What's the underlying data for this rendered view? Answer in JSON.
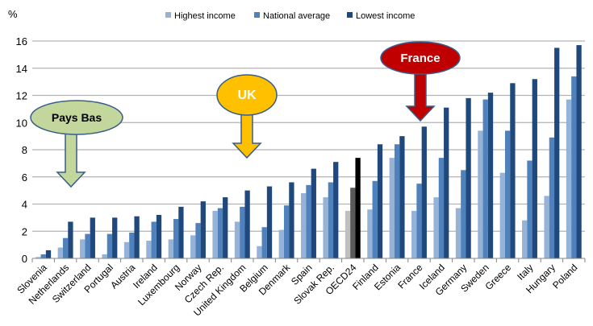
{
  "chart_data": {
    "type": "bar",
    "ylabel": "%",
    "ylim": [
      0,
      16
    ],
    "yticks": [
      0,
      2,
      4,
      6,
      8,
      10,
      12,
      14,
      16
    ],
    "grid": true,
    "legend_position": "top",
    "categories": [
      "Slovenia",
      "Netherlands",
      "Switzerland",
      "Portugal",
      "Austria",
      "Ireland",
      "Luxembourg",
      "Norway",
      "Czech Rep.",
      "United Kingdom",
      "Belgium",
      "Denmark",
      "Spain",
      "Slovak Rep.",
      "OECD24",
      "Finland",
      "Estonia",
      "France",
      "Iceland",
      "Germany",
      "Sweden",
      "Greece",
      "Italy",
      "Hungary",
      "Poland"
    ],
    "series": [
      {
        "name": "Highest income",
        "color": "#95b3d7",
        "values": [
          0.1,
          0.8,
          1.4,
          0.3,
          1.2,
          1.3,
          1.4,
          1.7,
          3.5,
          2.7,
          0.9,
          2.1,
          4.8,
          4.5,
          3.5,
          3.6,
          7.4,
          3.5,
          4.5,
          3.7,
          9.4,
          6.3,
          2.8,
          4.6,
          11.7
        ]
      },
      {
        "name": "National average",
        "color": "#4f81bd",
        "values": [
          0.3,
          1.5,
          1.8,
          1.8,
          1.9,
          2.7,
          2.9,
          2.6,
          3.7,
          3.8,
          2.3,
          3.9,
          5.4,
          5.6,
          5.2,
          5.7,
          8.4,
          5.5,
          7.4,
          6.5,
          11.7,
          9.4,
          7.2,
          8.9,
          13.4
        ]
      },
      {
        "name": "Lowest income",
        "color": "#1f497d",
        "values": [
          0.6,
          2.7,
          3.0,
          3.0,
          3.1,
          3.2,
          3.8,
          4.2,
          4.5,
          5.0,
          5.3,
          5.6,
          6.6,
          7.1,
          7.4,
          8.4,
          9.0,
          9.7,
          11.1,
          11.8,
          12.2,
          12.9,
          13.2,
          15.5,
          15.7
        ]
      }
    ],
    "highlight": {
      "category": "OECD24",
      "colors": [
        "#bfbfbf",
        "#595959",
        "#000000"
      ]
    },
    "annotations": [
      {
        "text": "Pays Bas",
        "category": "Netherlands",
        "fill": "#c3d69b",
        "text_color": "#000000"
      },
      {
        "text": "UK",
        "category": "United Kingdom",
        "fill": "#ffc000",
        "text_color": "#ffffff"
      },
      {
        "text": "France",
        "category": "France",
        "fill": "#c00000",
        "text_color": "#ffffff"
      }
    ]
  }
}
